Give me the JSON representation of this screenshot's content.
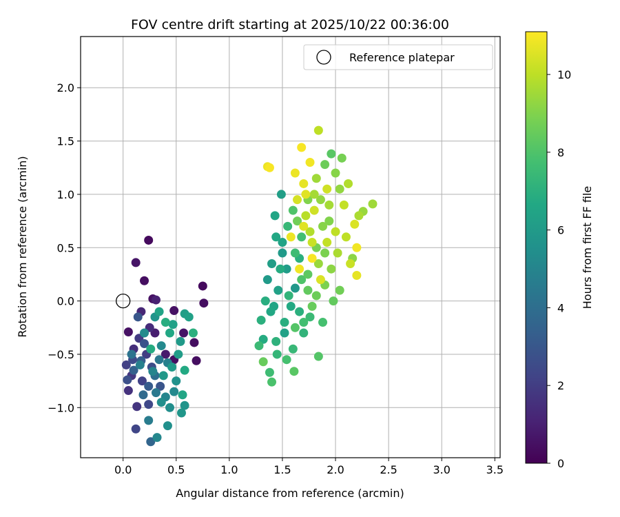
{
  "chart_data": {
    "type": "scatter",
    "title": "FOV centre drift starting at 2025/10/22 00:36:00",
    "xlabel": "Angular distance from reference (arcmin)",
    "ylabel": "Rotation from reference (arcmin)",
    "xlim": [
      -0.4,
      3.55
    ],
    "ylim": [
      -1.47,
      2.48
    ],
    "x_ticks": [
      0.0,
      0.5,
      1.0,
      1.5,
      2.0,
      2.5,
      3.0,
      3.5
    ],
    "x_tick_labels": [
      "0.0",
      "0.5",
      "1.0",
      "1.5",
      "2.0",
      "2.5",
      "3.0",
      "3.5"
    ],
    "y_ticks": [
      -1.0,
      -0.5,
      0.0,
      0.5,
      1.0,
      1.5,
      2.0
    ],
    "y_tick_labels": [
      "−1.0",
      "−0.5",
      "0.0",
      "0.5",
      "1.0",
      "1.5",
      "2.0"
    ],
    "grid": true,
    "legend": {
      "position": "top-right",
      "entries": [
        {
          "label": "Reference platepar",
          "marker": "open-circle"
        }
      ]
    },
    "reference_point": {
      "x": 0.0,
      "y": 0.0
    },
    "colorbar": {
      "label": "Hours from first FF file",
      "colormap": "viridis",
      "range": [
        0,
        11.1
      ],
      "ticks": [
        0,
        2,
        4,
        6,
        8,
        10
      ],
      "tick_labels": [
        "0",
        "2",
        "4",
        "6",
        "8",
        "10"
      ]
    },
    "series": [
      {
        "color_by": "hours",
        "points": [
          {
            "x": 0.24,
            "y": 0.57,
            "c": 0.3
          },
          {
            "x": 0.12,
            "y": 0.36,
            "c": 0.6
          },
          {
            "x": 0.2,
            "y": 0.19,
            "c": 0.4
          },
          {
            "x": 0.28,
            "y": 0.02,
            "c": 0.5
          },
          {
            "x": 0.75,
            "y": 0.14,
            "c": 0.3
          },
          {
            "x": 0.76,
            "y": -0.02,
            "c": 0.4
          },
          {
            "x": 0.05,
            "y": -0.29,
            "c": 0.5
          },
          {
            "x": 0.69,
            "y": -0.56,
            "c": 0.4
          },
          {
            "x": 0.48,
            "y": -0.09,
            "c": 0.5
          },
          {
            "x": 0.57,
            "y": -0.3,
            "c": 0.6
          },
          {
            "x": 0.48,
            "y": -0.55,
            "c": 0.4
          },
          {
            "x": 0.67,
            "y": -0.39,
            "c": 0.4
          },
          {
            "x": 0.4,
            "y": -0.5,
            "c": 0.8
          },
          {
            "x": 0.3,
            "y": -0.3,
            "c": 0.9
          },
          {
            "x": 0.31,
            "y": 0.01,
            "c": 1.0
          },
          {
            "x": 0.17,
            "y": -0.1,
            "c": 1.2
          },
          {
            "x": 0.25,
            "y": -0.25,
            "c": 1.4
          },
          {
            "x": 0.1,
            "y": -0.45,
            "c": 1.5
          },
          {
            "x": 0.05,
            "y": -0.84,
            "c": 1.6
          },
          {
            "x": 0.13,
            "y": -0.99,
            "c": 1.7
          },
          {
            "x": 0.08,
            "y": -0.7,
            "c": 1.8
          },
          {
            "x": 0.15,
            "y": -0.35,
            "c": 1.9
          },
          {
            "x": 0.22,
            "y": -0.5,
            "c": 2.0
          },
          {
            "x": 0.03,
            "y": -0.6,
            "c": 2.1
          },
          {
            "x": 0.18,
            "y": -0.75,
            "c": 2.2
          },
          {
            "x": 0.12,
            "y": -1.2,
            "c": 2.3
          },
          {
            "x": 0.24,
            "y": -0.97,
            "c": 2.4
          },
          {
            "x": 0.09,
            "y": -0.55,
            "c": 2.5
          },
          {
            "x": 0.27,
            "y": -0.62,
            "c": 2.6
          },
          {
            "x": 0.04,
            "y": -0.74,
            "c": 2.7
          },
          {
            "x": 0.2,
            "y": -0.4,
            "c": 2.8
          },
          {
            "x": 0.35,
            "y": -0.8,
            "c": 2.9
          },
          {
            "x": 0.14,
            "y": -0.15,
            "c": 3.0
          },
          {
            "x": 0.24,
            "y": -0.8,
            "c": 3.2
          },
          {
            "x": 0.1,
            "y": -0.65,
            "c": 3.4
          },
          {
            "x": 0.26,
            "y": -1.32,
            "c": 3.6
          },
          {
            "x": 0.19,
            "y": -0.88,
            "c": 3.8
          },
          {
            "x": 0.3,
            "y": -0.7,
            "c": 4.0
          },
          {
            "x": 0.08,
            "y": -0.5,
            "c": 4.2
          },
          {
            "x": 0.34,
            "y": -0.55,
            "c": 4.4
          },
          {
            "x": 0.24,
            "y": -1.12,
            "c": 4.6
          },
          {
            "x": 0.16,
            "y": -0.6,
            "c": 4.8
          },
          {
            "x": 0.4,
            "y": -0.9,
            "c": 5.0
          },
          {
            "x": 0.32,
            "y": -1.28,
            "c": 5.1
          },
          {
            "x": 0.36,
            "y": -0.42,
            "c": 5.2
          },
          {
            "x": 0.2,
            "y": -0.3,
            "c": 5.3
          },
          {
            "x": 0.44,
            "y": -1.0,
            "c": 5.4
          },
          {
            "x": 0.42,
            "y": -1.17,
            "c": 5.5
          },
          {
            "x": 0.5,
            "y": -0.75,
            "c": 5.6
          },
          {
            "x": 0.3,
            "y": -0.15,
            "c": 5.7
          },
          {
            "x": 0.55,
            "y": -1.05,
            "c": 5.8
          },
          {
            "x": 0.38,
            "y": -0.7,
            "c": 5.9
          },
          {
            "x": 0.46,
            "y": -0.62,
            "c": 6.0
          },
          {
            "x": 0.52,
            "y": -0.5,
            "c": 6.1
          },
          {
            "x": 0.58,
            "y": -0.12,
            "c": 6.2
          },
          {
            "x": 0.62,
            "y": -0.15,
            "c": 6.3
          },
          {
            "x": 0.34,
            "y": -0.1,
            "c": 6.4
          },
          {
            "x": 0.56,
            "y": -0.88,
            "c": 6.5
          },
          {
            "x": 0.44,
            "y": -0.3,
            "c": 6.6
          },
          {
            "x": 0.58,
            "y": -0.65,
            "c": 6.7
          },
          {
            "x": 0.26,
            "y": -0.45,
            "c": 6.8
          },
          {
            "x": 0.4,
            "y": -0.2,
            "c": 6.9
          },
          {
            "x": 0.66,
            "y": -0.3,
            "c": 7.0
          },
          {
            "x": 0.48,
            "y": -0.85,
            "c": 5.2
          },
          {
            "x": 0.36,
            "y": -0.95,
            "c": 5.4
          },
          {
            "x": 0.28,
            "y": -0.66,
            "c": 5.0
          },
          {
            "x": 0.42,
            "y": -0.58,
            "c": 4.8
          },
          {
            "x": 0.54,
            "y": -0.38,
            "c": 6.0
          },
          {
            "x": 0.31,
            "y": -0.86,
            "c": 4.5
          },
          {
            "x": 0.17,
            "y": -0.56,
            "c": 3.3
          },
          {
            "x": 0.47,
            "y": -0.22,
            "c": 6.3
          },
          {
            "x": 0.58,
            "y": -0.98,
            "c": 5.7
          },
          {
            "x": 1.49,
            "y": 1.0,
            "c": 6.2
          },
          {
            "x": 1.43,
            "y": 0.8,
            "c": 6.5
          },
          {
            "x": 1.36,
            "y": 0.2,
            "c": 6.0
          },
          {
            "x": 1.39,
            "y": -0.1,
            "c": 6.6
          },
          {
            "x": 1.32,
            "y": -0.36,
            "c": 6.8
          },
          {
            "x": 1.3,
            "y": -0.18,
            "c": 7.0
          },
          {
            "x": 1.45,
            "y": -0.5,
            "c": 7.3
          },
          {
            "x": 1.38,
            "y": -0.67,
            "c": 7.6
          },
          {
            "x": 1.4,
            "y": -0.76,
            "c": 7.9
          },
          {
            "x": 1.61,
            "y": -0.66,
            "c": 8.2
          },
          {
            "x": 1.32,
            "y": -0.57,
            "c": 8.5
          },
          {
            "x": 1.5,
            "y": 0.55,
            "c": 6.4
          },
          {
            "x": 1.54,
            "y": 0.3,
            "c": 6.1
          },
          {
            "x": 1.62,
            "y": 0.12,
            "c": 5.9
          },
          {
            "x": 1.58,
            "y": -0.05,
            "c": 6.7
          },
          {
            "x": 1.7,
            "y": -0.3,
            "c": 7.2
          },
          {
            "x": 1.76,
            "y": -0.15,
            "c": 7.5
          },
          {
            "x": 1.84,
            "y": -0.52,
            "c": 8.1
          },
          {
            "x": 1.66,
            "y": 0.4,
            "c": 7.0
          },
          {
            "x": 1.88,
            "y": -0.2,
            "c": 7.8
          },
          {
            "x": 1.46,
            "y": 0.1,
            "c": 6.3
          },
          {
            "x": 1.52,
            "y": -0.2,
            "c": 6.9
          },
          {
            "x": 1.44,
            "y": -0.38,
            "c": 7.1
          },
          {
            "x": 1.55,
            "y": 0.7,
            "c": 7.4
          },
          {
            "x": 1.68,
            "y": 0.6,
            "c": 7.7
          },
          {
            "x": 1.6,
            "y": 0.85,
            "c": 8.0
          },
          {
            "x": 1.74,
            "y": 0.25,
            "c": 8.3
          },
          {
            "x": 1.82,
            "y": 0.05,
            "c": 8.6
          },
          {
            "x": 1.9,
            "y": 0.45,
            "c": 8.9
          },
          {
            "x": 1.98,
            "y": 0.0,
            "c": 8.4
          },
          {
            "x": 2.04,
            "y": 0.1,
            "c": 8.7
          },
          {
            "x": 1.94,
            "y": 0.75,
            "c": 9.0
          },
          {
            "x": 1.86,
            "y": 0.95,
            "c": 9.3
          },
          {
            "x": 2.0,
            "y": 1.2,
            "c": 9.1
          },
          {
            "x": 1.96,
            "y": 1.38,
            "c": 8.2
          },
          {
            "x": 2.06,
            "y": 1.34,
            "c": 8.8
          },
          {
            "x": 1.8,
            "y": 1.0,
            "c": 9.6
          },
          {
            "x": 1.72,
            "y": 0.8,
            "c": 9.9
          },
          {
            "x": 1.78,
            "y": 0.55,
            "c": 10.2
          },
          {
            "x": 1.64,
            "y": 0.95,
            "c": 10.4
          },
          {
            "x": 1.7,
            "y": 1.1,
            "c": 10.7
          },
          {
            "x": 1.76,
            "y": 1.3,
            "c": 10.9
          },
          {
            "x": 1.84,
            "y": 1.6,
            "c": 10.0
          },
          {
            "x": 1.68,
            "y": 1.44,
            "c": 11.0
          },
          {
            "x": 1.38,
            "y": 1.25,
            "c": 11.0
          },
          {
            "x": 1.62,
            "y": 1.2,
            "c": 10.8
          },
          {
            "x": 1.72,
            "y": 1.0,
            "c": 10.6
          },
          {
            "x": 1.92,
            "y": 1.05,
            "c": 10.3
          },
          {
            "x": 2.08,
            "y": 0.9,
            "c": 10.1
          },
          {
            "x": 2.12,
            "y": 1.1,
            "c": 9.8
          },
          {
            "x": 2.18,
            "y": 0.72,
            "c": 10.5
          },
          {
            "x": 2.22,
            "y": 0.8,
            "c": 9.7
          },
          {
            "x": 2.35,
            "y": 0.91,
            "c": 9.5
          },
          {
            "x": 2.26,
            "y": 0.84,
            "c": 9.4
          },
          {
            "x": 2.2,
            "y": 0.5,
            "c": 10.9
          },
          {
            "x": 2.14,
            "y": 0.35,
            "c": 10.2
          },
          {
            "x": 2.2,
            "y": 0.24,
            "c": 10.7
          },
          {
            "x": 2.1,
            "y": 0.6,
            "c": 10.0
          },
          {
            "x": 2.02,
            "y": 0.45,
            "c": 9.7
          },
          {
            "x": 1.96,
            "y": 0.3,
            "c": 9.2
          },
          {
            "x": 1.9,
            "y": 0.15,
            "c": 8.9
          },
          {
            "x": 1.84,
            "y": 0.35,
            "c": 9.4
          },
          {
            "x": 1.76,
            "y": 0.65,
            "c": 9.8
          },
          {
            "x": 1.68,
            "y": 0.2,
            "c": 8.0
          },
          {
            "x": 1.62,
            "y": 0.45,
            "c": 7.6
          },
          {
            "x": 1.56,
            "y": 0.05,
            "c": 7.2
          },
          {
            "x": 1.48,
            "y": 0.3,
            "c": 6.8
          },
          {
            "x": 1.42,
            "y": -0.05,
            "c": 6.5
          },
          {
            "x": 1.52,
            "y": -0.3,
            "c": 6.3
          },
          {
            "x": 1.6,
            "y": -0.45,
            "c": 7.4
          },
          {
            "x": 1.66,
            "y": -0.1,
            "c": 7.0
          },
          {
            "x": 1.74,
            "y": 0.1,
            "c": 8.4
          },
          {
            "x": 1.82,
            "y": 0.5,
            "c": 8.8
          },
          {
            "x": 1.88,
            "y": 0.7,
            "c": 9.1
          },
          {
            "x": 1.94,
            "y": 0.9,
            "c": 9.6
          },
          {
            "x": 2.0,
            "y": 0.65,
            "c": 10.0
          },
          {
            "x": 1.8,
            "y": 0.85,
            "c": 10.3
          },
          {
            "x": 1.7,
            "y": 0.7,
            "c": 10.6
          },
          {
            "x": 1.58,
            "y": 0.6,
            "c": 10.8
          },
          {
            "x": 1.66,
            "y": 0.3,
            "c": 10.9
          },
          {
            "x": 1.78,
            "y": 0.4,
            "c": 11.0
          },
          {
            "x": 1.86,
            "y": 0.2,
            "c": 10.5
          },
          {
            "x": 1.92,
            "y": 0.55,
            "c": 10.1
          },
          {
            "x": 2.04,
            "y": 1.05,
            "c": 9.3
          },
          {
            "x": 1.5,
            "y": 0.45,
            "c": 6.0
          },
          {
            "x": 1.44,
            "y": 0.6,
            "c": 6.6
          },
          {
            "x": 1.4,
            "y": 0.35,
            "c": 6.2
          },
          {
            "x": 1.54,
            "y": -0.55,
            "c": 7.8
          },
          {
            "x": 1.62,
            "y": -0.25,
            "c": 8.1
          },
          {
            "x": 1.7,
            "y": -0.2,
            "c": 7.7
          },
          {
            "x": 1.78,
            "y": -0.05,
            "c": 8.5
          },
          {
            "x": 1.34,
            "y": 0.0,
            "c": 6.9
          },
          {
            "x": 1.28,
            "y": -0.42,
            "c": 7.5
          },
          {
            "x": 1.64,
            "y": 0.75,
            "c": 8.7
          },
          {
            "x": 1.74,
            "y": 0.95,
            "c": 9.0
          },
          {
            "x": 1.82,
            "y": 1.15,
            "c": 9.5
          },
          {
            "x": 1.9,
            "y": 1.28,
            "c": 8.6
          },
          {
            "x": 1.36,
            "y": 1.26,
            "c": 10.8
          },
          {
            "x": 2.16,
            "y": 0.4,
            "c": 9.2
          }
        ]
      }
    ]
  }
}
